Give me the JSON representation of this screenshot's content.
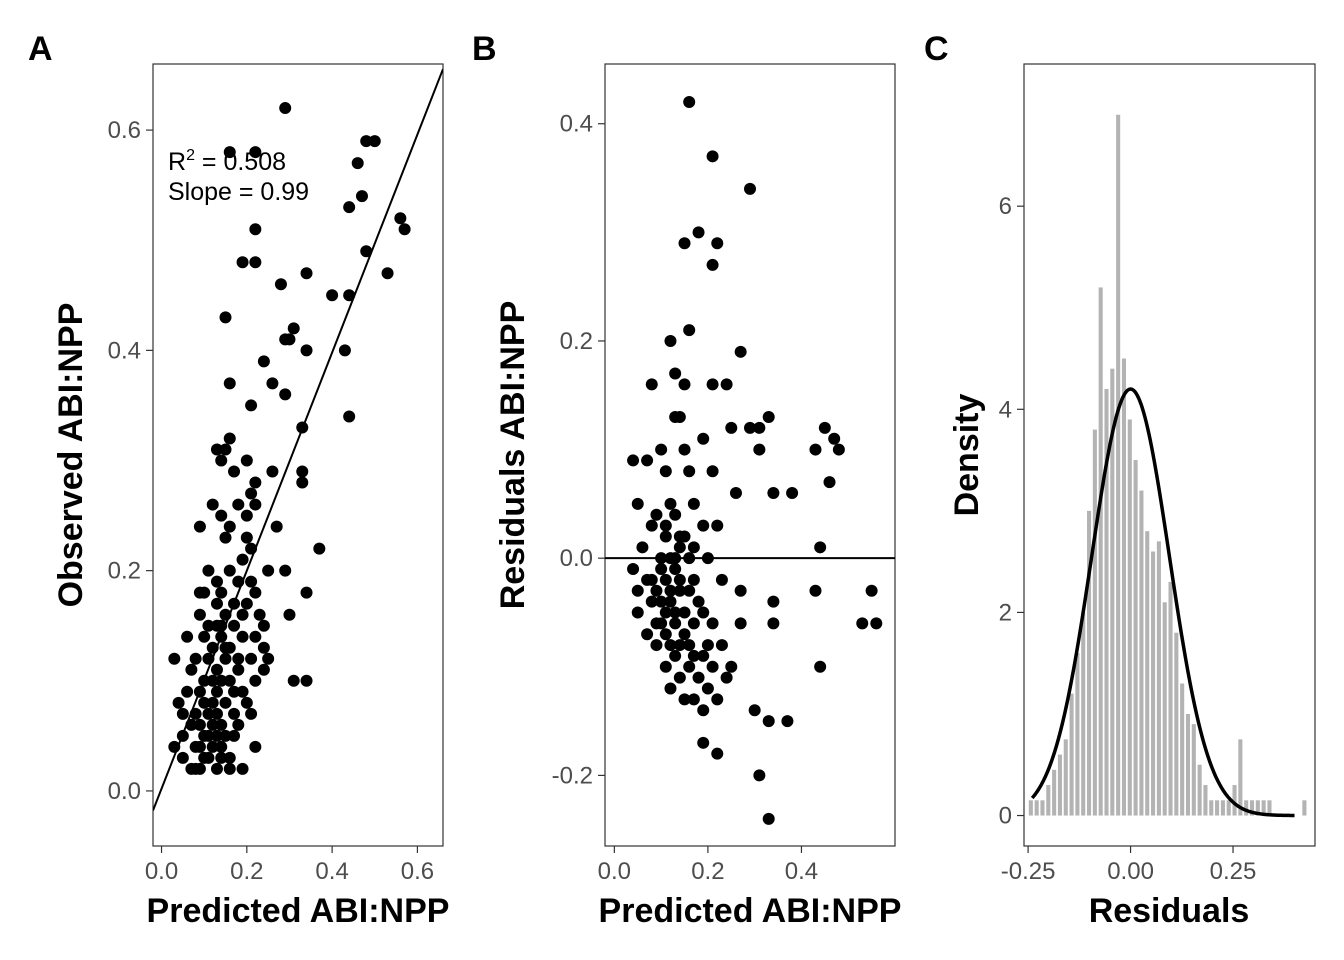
{
  "chart_data": [
    {
      "panel": "A",
      "type": "scatter",
      "xlabel": "Predicted ABI:NPP",
      "ylabel": "Observed ABI:NPP",
      "xlim": [
        -0.02,
        0.66
      ],
      "ylim": [
        -0.05,
        0.66
      ],
      "xticks": [
        0.0,
        0.2,
        0.4,
        0.6
      ],
      "yticks": [
        0.0,
        0.2,
        0.4,
        0.6
      ],
      "tick_labels_x": [
        "0.0",
        "0.2",
        "0.4",
        "0.6"
      ],
      "tick_labels_y": [
        "0.0",
        "0.2",
        "0.4",
        "0.6"
      ],
      "annotation": {
        "r2_text": "R",
        "r2_sup": "2",
        "r2_value": " = 0.508",
        "slope_text": "Slope = 0.99"
      },
      "fit_line": {
        "slope": 0.99,
        "intercept": 0.002
      },
      "grid": false,
      "points": [
        [
          0.29,
          0.62
        ],
        [
          0.48,
          0.59
        ],
        [
          0.5,
          0.59
        ],
        [
          0.16,
          0.58
        ],
        [
          0.22,
          0.58
        ],
        [
          0.46,
          0.57
        ],
        [
          0.47,
          0.54
        ],
        [
          0.44,
          0.53
        ],
        [
          0.56,
          0.52
        ],
        [
          0.57,
          0.51
        ],
        [
          0.22,
          0.51
        ],
        [
          0.48,
          0.49
        ],
        [
          0.19,
          0.48
        ],
        [
          0.22,
          0.48
        ],
        [
          0.34,
          0.47
        ],
        [
          0.53,
          0.47
        ],
        [
          0.28,
          0.46
        ],
        [
          0.4,
          0.45
        ],
        [
          0.44,
          0.45
        ],
        [
          0.15,
          0.43
        ],
        [
          0.31,
          0.42
        ],
        [
          0.3,
          0.41
        ],
        [
          0.29,
          0.41
        ],
        [
          0.34,
          0.4
        ],
        [
          0.43,
          0.4
        ],
        [
          0.24,
          0.39
        ],
        [
          0.16,
          0.37
        ],
        [
          0.26,
          0.37
        ],
        [
          0.29,
          0.36
        ],
        [
          0.21,
          0.35
        ],
        [
          0.44,
          0.34
        ],
        [
          0.33,
          0.33
        ],
        [
          0.16,
          0.32
        ],
        [
          0.13,
          0.31
        ],
        [
          0.15,
          0.31
        ],
        [
          0.14,
          0.3
        ],
        [
          0.2,
          0.3
        ],
        [
          0.17,
          0.29
        ],
        [
          0.26,
          0.29
        ],
        [
          0.33,
          0.29
        ],
        [
          0.22,
          0.28
        ],
        [
          0.33,
          0.28
        ],
        [
          0.21,
          0.27
        ],
        [
          0.12,
          0.26
        ],
        [
          0.18,
          0.26
        ],
        [
          0.22,
          0.26
        ],
        [
          0.14,
          0.25
        ],
        [
          0.2,
          0.25
        ],
        [
          0.16,
          0.24
        ],
        [
          0.09,
          0.24
        ],
        [
          0.27,
          0.24
        ],
        [
          0.2,
          0.23
        ],
        [
          0.15,
          0.23
        ],
        [
          0.21,
          0.22
        ],
        [
          0.37,
          0.22
        ],
        [
          0.19,
          0.21
        ],
        [
          0.11,
          0.2
        ],
        [
          0.16,
          0.2
        ],
        [
          0.25,
          0.2
        ],
        [
          0.29,
          0.2
        ],
        [
          0.18,
          0.19
        ],
        [
          0.13,
          0.19
        ],
        [
          0.21,
          0.19
        ],
        [
          0.22,
          0.18
        ],
        [
          0.09,
          0.18
        ],
        [
          0.1,
          0.18
        ],
        [
          0.14,
          0.18
        ],
        [
          0.34,
          0.18
        ],
        [
          0.13,
          0.17
        ],
        [
          0.17,
          0.17
        ],
        [
          0.2,
          0.17
        ],
        [
          0.09,
          0.16
        ],
        [
          0.19,
          0.16
        ],
        [
          0.3,
          0.16
        ],
        [
          0.15,
          0.16
        ],
        [
          0.23,
          0.16
        ],
        [
          0.11,
          0.15
        ],
        [
          0.17,
          0.15
        ],
        [
          0.13,
          0.15
        ],
        [
          0.24,
          0.15
        ],
        [
          0.06,
          0.14
        ],
        [
          0.1,
          0.14
        ],
        [
          0.14,
          0.14
        ],
        [
          0.22,
          0.14
        ],
        [
          0.24,
          0.13
        ],
        [
          0.16,
          0.13
        ],
        [
          0.12,
          0.13
        ],
        [
          0.18,
          0.12
        ],
        [
          0.03,
          0.12
        ],
        [
          0.11,
          0.12
        ],
        [
          0.15,
          0.12
        ],
        [
          0.08,
          0.12
        ],
        [
          0.21,
          0.12
        ],
        [
          0.25,
          0.12
        ],
        [
          0.13,
          0.11
        ],
        [
          0.07,
          0.11
        ],
        [
          0.18,
          0.11
        ],
        [
          0.14,
          0.1
        ],
        [
          0.1,
          0.1
        ],
        [
          0.16,
          0.1
        ],
        [
          0.22,
          0.1
        ],
        [
          0.12,
          0.1
        ],
        [
          0.31,
          0.1
        ],
        [
          0.34,
          0.1
        ],
        [
          0.24,
          0.11
        ],
        [
          0.09,
          0.09
        ],
        [
          0.06,
          0.09
        ],
        [
          0.17,
          0.09
        ],
        [
          0.13,
          0.09
        ],
        [
          0.19,
          0.09
        ],
        [
          0.1,
          0.08
        ],
        [
          0.04,
          0.08
        ],
        [
          0.15,
          0.08
        ],
        [
          0.2,
          0.08
        ],
        [
          0.11,
          0.07
        ],
        [
          0.17,
          0.07
        ],
        [
          0.08,
          0.07
        ],
        [
          0.13,
          0.07
        ],
        [
          0.05,
          0.07
        ],
        [
          0.21,
          0.07
        ],
        [
          0.12,
          0.06
        ],
        [
          0.14,
          0.06
        ],
        [
          0.09,
          0.06
        ],
        [
          0.18,
          0.06
        ],
        [
          0.07,
          0.06
        ],
        [
          0.15,
          0.05
        ],
        [
          0.11,
          0.05
        ],
        [
          0.1,
          0.05
        ],
        [
          0.13,
          0.05
        ],
        [
          0.05,
          0.05
        ],
        [
          0.17,
          0.05
        ],
        [
          0.08,
          0.04
        ],
        [
          0.14,
          0.04
        ],
        [
          0.03,
          0.04
        ],
        [
          0.22,
          0.04
        ],
        [
          0.12,
          0.04
        ],
        [
          0.09,
          0.04
        ],
        [
          0.16,
          0.03
        ],
        [
          0.05,
          0.03
        ],
        [
          0.11,
          0.03
        ],
        [
          0.14,
          0.03
        ],
        [
          0.07,
          0.02
        ],
        [
          0.13,
          0.02
        ],
        [
          0.09,
          0.02
        ],
        [
          0.16,
          0.02
        ],
        [
          0.19,
          0.02
        ],
        [
          0.08,
          0.02
        ],
        [
          0.1,
          0.03
        ],
        [
          0.12,
          0.08
        ],
        [
          0.15,
          0.13
        ],
        [
          0.19,
          0.14
        ],
        [
          0.14,
          0.15
        ]
      ]
    },
    {
      "panel": "B",
      "type": "scatter",
      "xlabel": "Predicted ABI:NPP",
      "ylabel": "Residuals ABI:NPP",
      "xlim": [
        -0.02,
        0.6
      ],
      "ylim": [
        -0.265,
        0.455
      ],
      "xticks": [
        0.0,
        0.2,
        0.4
      ],
      "yticks": [
        -0.2,
        0.0,
        0.2,
        0.4
      ],
      "tick_labels_x": [
        "0.0",
        "0.2",
        "0.4"
      ],
      "tick_labels_y": [
        "-0.2",
        "0.0",
        "0.2",
        "0.4"
      ],
      "hline": 0.0,
      "grid": false,
      "points": [
        [
          0.16,
          0.42
        ],
        [
          0.21,
          0.37
        ],
        [
          0.29,
          0.34
        ],
        [
          0.18,
          0.3
        ],
        [
          0.15,
          0.29
        ],
        [
          0.22,
          0.29
        ],
        [
          0.21,
          0.27
        ],
        [
          0.16,
          0.21
        ],
        [
          0.12,
          0.2
        ],
        [
          0.27,
          0.19
        ],
        [
          0.13,
          0.17
        ],
        [
          0.15,
          0.16
        ],
        [
          0.08,
          0.16
        ],
        [
          0.24,
          0.16
        ],
        [
          0.21,
          0.16
        ],
        [
          0.13,
          0.13
        ],
        [
          0.14,
          0.13
        ],
        [
          0.31,
          0.12
        ],
        [
          0.33,
          0.13
        ],
        [
          0.25,
          0.12
        ],
        [
          0.29,
          0.12
        ],
        [
          0.45,
          0.12
        ],
        [
          0.47,
          0.11
        ],
        [
          0.31,
          0.1
        ],
        [
          0.43,
          0.1
        ],
        [
          0.48,
          0.1
        ],
        [
          0.1,
          0.1
        ],
        [
          0.15,
          0.1
        ],
        [
          0.19,
          0.11
        ],
        [
          0.04,
          0.09
        ],
        [
          0.07,
          0.09
        ],
        [
          0.11,
          0.08
        ],
        [
          0.16,
          0.08
        ],
        [
          0.21,
          0.08
        ],
        [
          0.26,
          0.06
        ],
        [
          0.34,
          0.06
        ],
        [
          0.38,
          0.06
        ],
        [
          0.46,
          0.07
        ],
        [
          0.12,
          0.05
        ],
        [
          0.05,
          0.05
        ],
        [
          0.17,
          0.05
        ],
        [
          0.13,
          0.04
        ],
        [
          0.09,
          0.04
        ],
        [
          0.08,
          0.03
        ],
        [
          0.19,
          0.03
        ],
        [
          0.22,
          0.03
        ],
        [
          0.11,
          0.02
        ],
        [
          0.14,
          0.02
        ],
        [
          0.06,
          0.01
        ],
        [
          0.1,
          0.0
        ],
        [
          0.16,
          0.0
        ],
        [
          0.2,
          0.0
        ],
        [
          0.04,
          -0.01
        ],
        [
          0.13,
          -0.01
        ],
        [
          0.44,
          0.01
        ],
        [
          0.07,
          -0.02
        ],
        [
          0.11,
          -0.02
        ],
        [
          0.17,
          -0.02
        ],
        [
          0.23,
          -0.02
        ],
        [
          0.05,
          -0.03
        ],
        [
          0.09,
          -0.03
        ],
        [
          0.14,
          -0.03
        ],
        [
          0.27,
          -0.03
        ],
        [
          0.34,
          -0.04
        ],
        [
          0.43,
          -0.03
        ],
        [
          0.55,
          -0.03
        ],
        [
          0.08,
          -0.04
        ],
        [
          0.12,
          -0.04
        ],
        [
          0.15,
          -0.05
        ],
        [
          0.19,
          -0.05
        ],
        [
          0.05,
          -0.05
        ],
        [
          0.53,
          -0.06
        ],
        [
          0.56,
          -0.06
        ],
        [
          0.1,
          -0.06
        ],
        [
          0.13,
          -0.06
        ],
        [
          0.17,
          -0.06
        ],
        [
          0.21,
          -0.06
        ],
        [
          0.27,
          -0.06
        ],
        [
          0.34,
          -0.06
        ],
        [
          0.11,
          -0.07
        ],
        [
          0.15,
          -0.07
        ],
        [
          0.07,
          -0.07
        ],
        [
          0.2,
          -0.08
        ],
        [
          0.12,
          -0.08
        ],
        [
          0.14,
          -0.08
        ],
        [
          0.23,
          -0.08
        ],
        [
          0.09,
          -0.08
        ],
        [
          0.17,
          -0.09
        ],
        [
          0.13,
          -0.09
        ],
        [
          0.19,
          -0.09
        ],
        [
          0.25,
          -0.1
        ],
        [
          0.16,
          -0.1
        ],
        [
          0.11,
          -0.1
        ],
        [
          0.21,
          -0.1
        ],
        [
          0.44,
          -0.1
        ],
        [
          0.14,
          -0.11
        ],
        [
          0.18,
          -0.11
        ],
        [
          0.24,
          -0.11
        ],
        [
          0.12,
          -0.12
        ],
        [
          0.2,
          -0.12
        ],
        [
          0.17,
          -0.13
        ],
        [
          0.22,
          -0.13
        ],
        [
          0.15,
          -0.13
        ],
        [
          0.19,
          -0.14
        ],
        [
          0.3,
          -0.14
        ],
        [
          0.33,
          -0.15
        ],
        [
          0.37,
          -0.15
        ],
        [
          0.19,
          -0.17
        ],
        [
          0.22,
          -0.18
        ],
        [
          0.31,
          -0.2
        ],
        [
          0.33,
          -0.24
        ],
        [
          0.1,
          -0.01
        ],
        [
          0.12,
          0.0
        ],
        [
          0.08,
          -0.02
        ],
        [
          0.14,
          0.01
        ],
        [
          0.16,
          -0.03
        ],
        [
          0.11,
          0.03
        ],
        [
          0.13,
          -0.05
        ],
        [
          0.09,
          -0.06
        ],
        [
          0.15,
          0.02
        ],
        [
          0.18,
          -0.04
        ],
        [
          0.12,
          -0.03
        ],
        [
          0.1,
          -0.04
        ],
        [
          0.14,
          -0.02
        ],
        [
          0.16,
          -0.08
        ],
        [
          0.11,
          -0.05
        ],
        [
          0.13,
          0.0
        ],
        [
          0.17,
          0.01
        ]
      ]
    },
    {
      "panel": "C",
      "type": "bar",
      "xlabel": "Residuals",
      "ylabel": "Density",
      "xlim": [
        -0.26,
        0.45
      ],
      "ylim": [
        -0.3,
        7.4
      ],
      "xticks": [
        -0.25,
        0.0,
        0.25
      ],
      "yticks": [
        0,
        2,
        4,
        6
      ],
      "tick_labels_x": [
        "-0.25",
        "0.00",
        "0.25"
      ],
      "tick_labels_y": [
        "0",
        "2",
        "4",
        "6"
      ],
      "bar_color": "#b3b3b3",
      "grid": false,
      "histogram": {
        "bin_width": 0.0142,
        "bin_centers": [
          -0.2433,
          -0.2291,
          -0.2149,
          -0.2007,
          -0.1865,
          -0.1723,
          -0.1581,
          -0.1439,
          -0.1297,
          -0.1155,
          -0.1013,
          -0.0871,
          -0.0729,
          -0.0587,
          -0.0445,
          -0.0303,
          -0.0161,
          -0.0019,
          0.0123,
          0.0265,
          0.0407,
          0.0549,
          0.0691,
          0.0833,
          0.0975,
          0.1117,
          0.1259,
          0.1401,
          0.1543,
          0.1685,
          0.1827,
          0.1969,
          0.2111,
          0.2253,
          0.2395,
          0.2537,
          0.2679,
          0.2821,
          0.2963,
          0.3105,
          0.3247,
          0.3389,
          0.3531,
          0.3673,
          0.3815,
          0.3957,
          0.4099,
          0.4241
        ],
        "density": [
          0.15,
          0.15,
          0.15,
          0.3,
          0.45,
          0.6,
          0.75,
          1.2,
          1.6,
          2.0,
          3.0,
          3.8,
          5.2,
          4.2,
          4.4,
          6.9,
          4.5,
          3.9,
          3.5,
          3.2,
          2.8,
          2.6,
          2.7,
          2.1,
          2.3,
          1.8,
          1.3,
          1.0,
          0.9,
          0.5,
          0.3,
          0.15,
          0.15,
          0.15,
          0.15,
          0.3,
          0.75,
          0.15,
          0.15,
          0.15,
          0.15,
          0.15,
          0.0,
          0.0,
          0.0,
          0.0,
          0.0,
          0.15
        ]
      },
      "density_curve": {
        "mean": 0.0,
        "sd": 0.095,
        "x_range": [
          -0.24,
          0.4
        ]
      }
    }
  ],
  "panels": {
    "a_tag": "A",
    "b_tag": "B",
    "c_tag": "C"
  }
}
